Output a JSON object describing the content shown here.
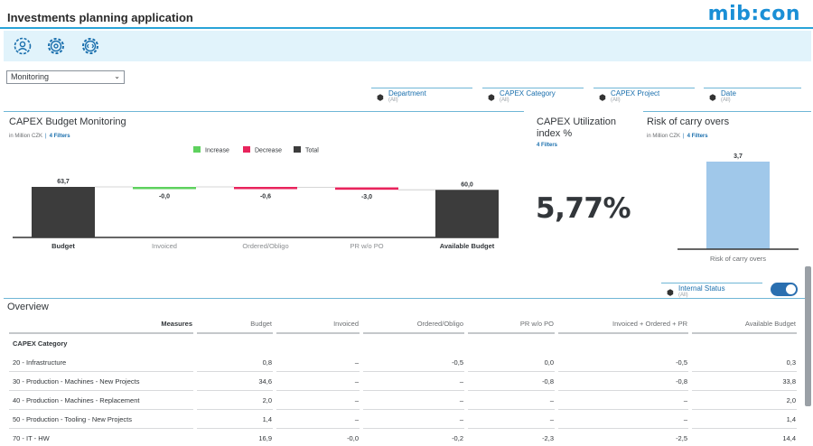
{
  "app": {
    "title": "Investments planning application",
    "logo": "mib:con"
  },
  "toolbar": {
    "icons": [
      "user-settings-icon",
      "gear-icon",
      "code-settings-icon"
    ]
  },
  "view_select": {
    "value": "Monitoring"
  },
  "filters": [
    {
      "name": "Department",
      "value": "(All)"
    },
    {
      "name": "CAPEX Category",
      "value": "(All)"
    },
    {
      "name": "CAPEX Project",
      "value": "(All)"
    },
    {
      "name": "Date",
      "value": "(All)"
    }
  ],
  "budget_panel": {
    "title": "CAPEX Budget Monitoring",
    "unit": "in Million CZK",
    "filters_link": "4 Filters"
  },
  "utilization_panel": {
    "title": "CAPEX Utilization index %",
    "filters_link": "4 Filters",
    "value": "5,77%"
  },
  "risk_panel": {
    "title": "Risk of carry overs",
    "unit": "in Million CZK",
    "filters_link": "4 Filters"
  },
  "colors": {
    "increase": "#5ed15e",
    "decrease": "#e8245c",
    "total": "#3c3c3c",
    "risk_bar": "#a0c8ea",
    "accent": "#29a3d8"
  },
  "chart_data": [
    {
      "type": "bar",
      "subtype": "waterfall",
      "title": "CAPEX Budget Monitoring",
      "legend": [
        "Increase",
        "Decrease",
        "Total"
      ],
      "legend_position": "top",
      "categories": [
        "Budget",
        "Invoiced",
        "Ordered/Obligo",
        "PR w/o PO",
        "Available Budget"
      ],
      "values": [
        63.7,
        -0.0,
        -0.6,
        -3.0,
        60.0
      ],
      "kinds": [
        "total",
        "decrease",
        "decrease",
        "decrease",
        "total"
      ],
      "labels": [
        "63,7",
        "-0,0",
        "-0,6",
        "-3,0",
        "60,0"
      ]
    },
    {
      "type": "bar",
      "title": "Risk of carry overs",
      "categories": [
        "Risk of carry overs"
      ],
      "values": [
        3.7
      ],
      "labels": [
        "3,7"
      ]
    }
  ],
  "internal_status": {
    "name": "Internal Status",
    "value": "(All)"
  },
  "overview": {
    "title": "Overview",
    "columns": [
      "Measures",
      "Budget",
      "Invoiced",
      "Ordered/Obligo",
      "PR w/o PO",
      "Invoiced + Ordered + PR",
      "Available Budget"
    ],
    "section": "CAPEX Category",
    "rows": [
      [
        "20 - Infrastructure",
        "0,8",
        "–",
        "-0,5",
        "0,0",
        "-0,5",
        "0,3"
      ],
      [
        "30 - Production - Machines - New Projects",
        "34,6",
        "–",
        "–",
        "-0,8",
        "-0,8",
        "33,8"
      ],
      [
        "40 - Production - Machines - Replacement",
        "2,0",
        "–",
        "–",
        "–",
        "–",
        "2,0"
      ],
      [
        "50 - Production - Tooling - New Projects",
        "1,4",
        "–",
        "–",
        "–",
        "–",
        "1,4"
      ],
      [
        "70 - IT - HW",
        "16,9",
        "-0,0",
        "-0,2",
        "-2,3",
        "-2,5",
        "14,4"
      ]
    ]
  }
}
